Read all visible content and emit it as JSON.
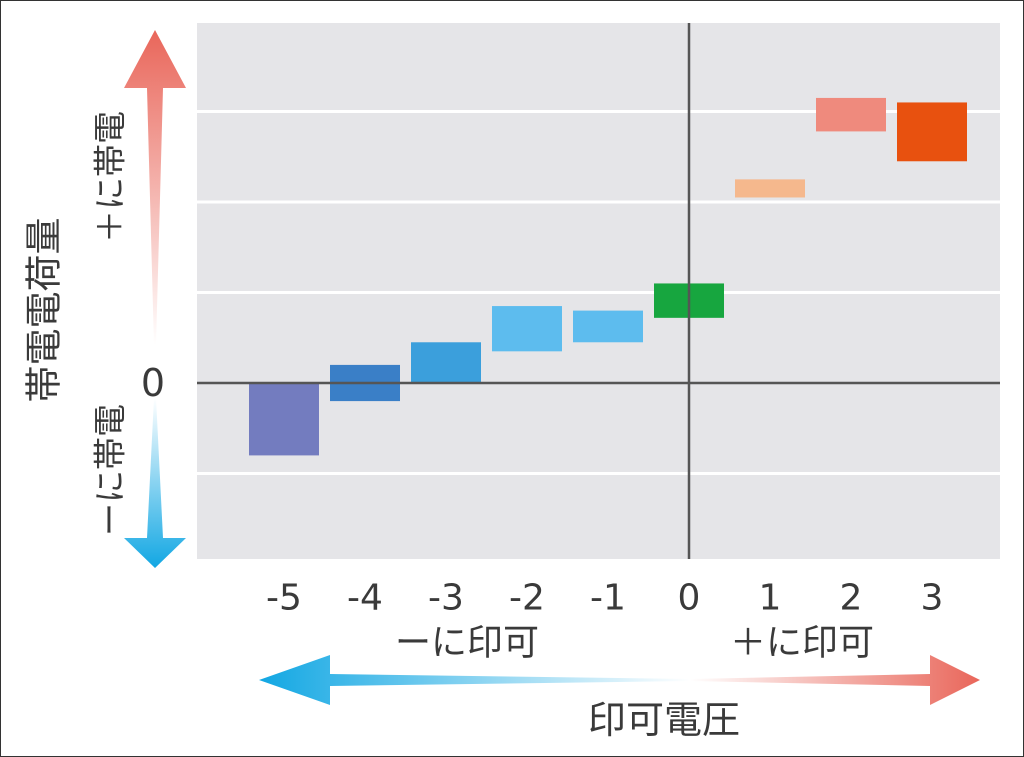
{
  "chart_data": {
    "type": "floating-bar",
    "x_ticks": [
      "-5",
      "-4",
      "-3",
      "-2",
      "-1",
      "0",
      "1",
      "2",
      "3"
    ],
    "xlabel": "印可電圧",
    "x_neg_label": "ーに印可",
    "x_pos_label": "＋に印可",
    "ylabel": "帯電電荷量",
    "y_zero_label": "0",
    "y_pos_label": "＋に帯電",
    "y_neg_label": "ーに帯電",
    "grid": true,
    "ylim": [
      -2,
      4
    ],
    "y_grid": [
      -1,
      1,
      2,
      3
    ],
    "bars": [
      {
        "x": -5,
        "low": -0.8,
        "high": 0.0,
        "color": "#737cbf"
      },
      {
        "x": -4,
        "low": -0.2,
        "high": 0.2,
        "color": "#3a7fc7"
      },
      {
        "x": -3,
        "low": 0.0,
        "high": 0.45,
        "color": "#3b9fdc"
      },
      {
        "x": -2,
        "low": 0.35,
        "high": 0.85,
        "color": "#5dbcee"
      },
      {
        "x": -1,
        "low": 0.45,
        "high": 0.8,
        "color": "#5dbcee"
      },
      {
        "x": 0,
        "low": 0.72,
        "high": 1.1,
        "color": "#17a63f"
      },
      {
        "x": 1,
        "low": 2.05,
        "high": 2.25,
        "color": "#f5b88d"
      },
      {
        "x": 2,
        "low": 2.78,
        "high": 3.15,
        "color": "#ef8a7d"
      },
      {
        "x": 3,
        "low": 2.45,
        "high": 3.1,
        "color": "#e8510f"
      }
    ],
    "colors": {
      "plot_bg": "#e5e5e8",
      "gridline": "#ffffff",
      "axis": "#555555",
      "positive_arrow": "#e9665a",
      "negative_arrow": "#12a7e3"
    }
  }
}
